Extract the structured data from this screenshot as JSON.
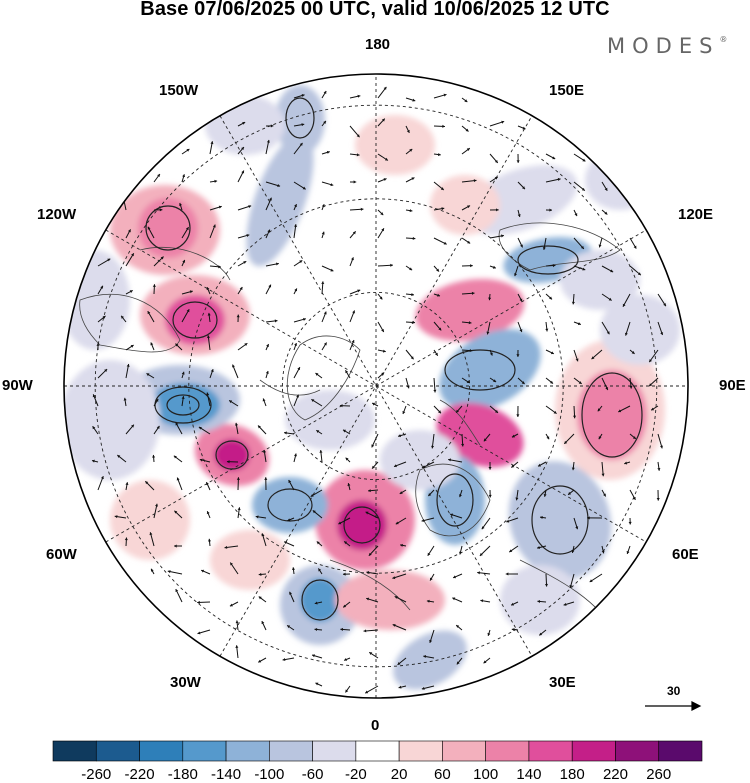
{
  "title": "Base 07/06/2025 00 UTC, valid 10/06/2025 12 UTC",
  "brand": "MODES",
  "brand_mark": "®",
  "longitude_labels": [
    "180",
    "150E",
    "120E",
    "90E",
    "60E",
    "30E",
    "0",
    "30W",
    "60W",
    "90W",
    "120W",
    "150W"
  ],
  "vector_scale": {
    "label": "30"
  },
  "colorbar": {
    "ticks": [
      "-260",
      "-220",
      "-180",
      "-140",
      "-100",
      "-60",
      "-20",
      "20",
      "60",
      "100",
      "140",
      "180",
      "220",
      "260"
    ],
    "colors": [
      "#0f3a5e",
      "#1c5b8f",
      "#2e7fb9",
      "#5599cc",
      "#8eb2d8",
      "#b9c5df",
      "#dcdcec",
      "#ffffff",
      "#f8d6d6",
      "#f3b0bd",
      "#ec82a8",
      "#e04f9c",
      "#c41f88",
      "#8e1179",
      "#5a0a6c"
    ]
  },
  "anomaly_colors": {
    "positive": [
      "#f8d6d6",
      "#f3b0bd",
      "#ec82a8",
      "#e04f9c",
      "#c41f88"
    ],
    "negative": [
      "#dcdcec",
      "#b9c5df",
      "#8eb2d8",
      "#5599cc",
      "#2e7fb9"
    ]
  }
}
